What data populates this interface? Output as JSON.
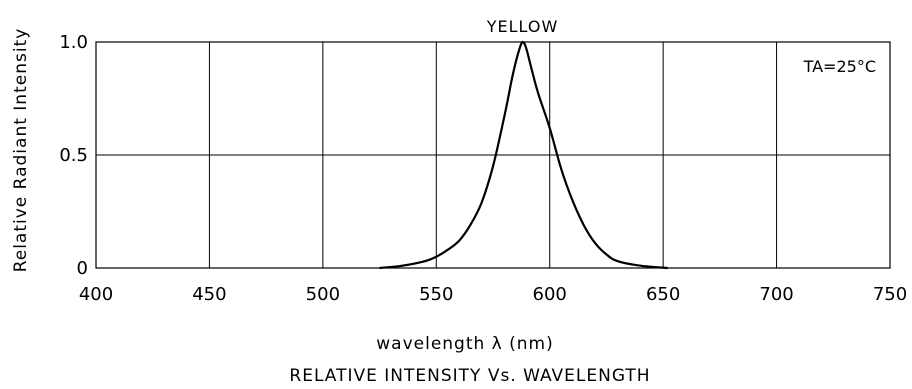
{
  "chart_data": {
    "type": "line",
    "title": "YELLOW",
    "annotation": "TA=25°C",
    "xlabel": "wavelength λ  (nm)",
    "ylabel": "Relative Radiant Intensity",
    "caption": "RELATIVE INTENSITY Vs. WAVELENGTH",
    "xlim": [
      400,
      750
    ],
    "ylim": [
      0,
      1.0
    ],
    "x_ticks": [
      400,
      450,
      500,
      550,
      600,
      650,
      700,
      750
    ],
    "x_tick_labels": [
      "400",
      "450",
      "500",
      "550",
      "600",
      "650",
      "700",
      "750"
    ],
    "y_ticks": [
      0,
      0.5,
      1.0
    ],
    "y_tick_labels": [
      "0",
      "0.5",
      "1.0"
    ],
    "grid": true,
    "series": [
      {
        "x": [
          525,
          535,
          545,
          550,
          555,
          560,
          565,
          570,
          575,
          580,
          583,
          585,
          587,
          588,
          589,
          590,
          592,
          595,
          600,
          605,
          610,
          615,
          620,
          625,
          630,
          640,
          652
        ],
        "y": [
          0.0,
          0.01,
          0.03,
          0.05,
          0.08,
          0.12,
          0.19,
          0.29,
          0.45,
          0.67,
          0.82,
          0.91,
          0.98,
          1.0,
          0.99,
          0.96,
          0.88,
          0.77,
          0.62,
          0.44,
          0.3,
          0.19,
          0.11,
          0.06,
          0.03,
          0.01,
          0.0
        ],
        "color": "#000000"
      }
    ]
  }
}
